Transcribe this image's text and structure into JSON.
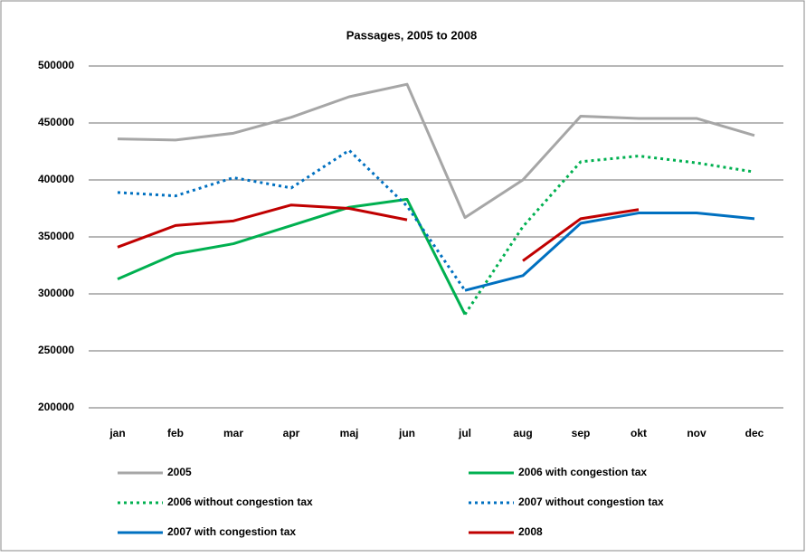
{
  "chart_data": {
    "type": "line",
    "title": "Passages, 2005 to 2008",
    "categories": [
      "jan",
      "feb",
      "mar",
      "apr",
      "maj",
      "jun",
      "jul",
      "aug",
      "sep",
      "okt",
      "nov",
      "dec"
    ],
    "ylim": [
      200000,
      500000
    ],
    "yticks": [
      200000,
      250000,
      300000,
      350000,
      400000,
      450000,
      500000
    ],
    "grid": true,
    "series": [
      {
        "name": "2005",
        "color": "#a6a6a6",
        "style": "solid",
        "values": [
          436000,
          435000,
          441000,
          455000,
          473000,
          484000,
          367000,
          400000,
          456000,
          454000,
          454000,
          439000
        ]
      },
      {
        "name": "2006 with congestion tax",
        "color": "#00b050",
        "style": "solid",
        "values": [
          313000,
          335000,
          344000,
          360000,
          376000,
          383000,
          282000,
          null,
          null,
          null,
          null,
          null
        ]
      },
      {
        "name": "2006 without congestion tax",
        "color": "#00b050",
        "style": "dotted",
        "values": [
          null,
          null,
          null,
          null,
          null,
          null,
          282000,
          359000,
          416000,
          421000,
          415000,
          407000
        ]
      },
      {
        "name": "2007 without congestion tax",
        "color": "#0070c0",
        "style": "dotted",
        "values": [
          389000,
          386000,
          402000,
          393000,
          426000,
          377000,
          303000,
          null,
          null,
          null,
          null,
          null
        ]
      },
      {
        "name": "2007 with congestion tax",
        "color": "#0070c0",
        "style": "solid",
        "values": [
          null,
          null,
          null,
          null,
          null,
          null,
          303000,
          316000,
          362000,
          371000,
          371000,
          366000
        ]
      },
      {
        "name": "2008",
        "color": "#c00000",
        "style": "solid",
        "values": [
          341000,
          360000,
          364000,
          378000,
          375000,
          365000,
          null,
          329000,
          366000,
          374000,
          null,
          null
        ]
      }
    ]
  }
}
